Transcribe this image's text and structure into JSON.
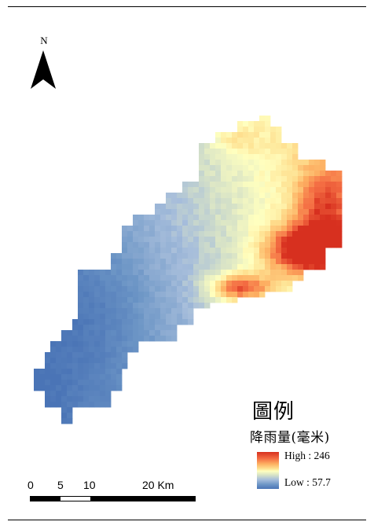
{
  "north": {
    "label": "N",
    "icon": "north-arrow-icon"
  },
  "legend": {
    "title": "圖例",
    "subtitle": "降雨量(毫米)",
    "high_text": "High : 246",
    "low_text": "Low : 57.7",
    "high_value": 246,
    "low_value": 57.7,
    "colors": {
      "high": "#d7301f",
      "mid": "#ffffbf",
      "low": "#4a74b6"
    }
  },
  "scale_bar": {
    "labels": [
      "0",
      "5",
      "10",
      "20 Km"
    ],
    "fill_color": "#000000",
    "gap_color": "#ffffff"
  },
  "map": {
    "layer": "rainfall-raster",
    "border_color": "#000000"
  }
}
